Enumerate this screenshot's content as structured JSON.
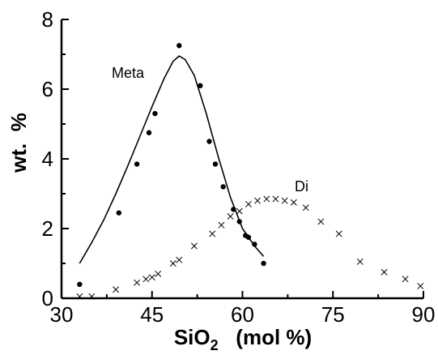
{
  "chart_data": {
    "type": "scatter",
    "title": "",
    "xlabel": {
      "main": "SiO",
      "subscript": "2",
      "unit": "(mol %)"
    },
    "ylabel": "wt.  %",
    "xlim": [
      30,
      90
    ],
    "ylim": [
      0,
      8
    ],
    "x_ticks": [
      30,
      45,
      60,
      75,
      90
    ],
    "y_ticks": [
      0,
      2,
      4,
      6,
      8
    ],
    "grid": false,
    "legend": "none",
    "series": [
      {
        "name": "Meta",
        "marker": "dot",
        "color": "#000000",
        "points": [
          [
            33.0,
            0.4
          ],
          [
            39.5,
            2.45
          ],
          [
            42.5,
            3.85
          ],
          [
            44.5,
            4.75
          ],
          [
            45.5,
            5.3
          ],
          [
            49.5,
            7.25
          ],
          [
            53.0,
            6.1
          ],
          [
            54.5,
            4.5
          ],
          [
            55.5,
            3.85
          ],
          [
            56.8,
            3.2
          ],
          [
            58.5,
            2.55
          ],
          [
            59.5,
            2.2
          ],
          [
            60.5,
            1.8
          ],
          [
            61.0,
            1.75
          ],
          [
            62.0,
            1.55
          ],
          [
            63.5,
            1.0
          ]
        ],
        "fit": [
          [
            33.0,
            1.0
          ],
          [
            35.0,
            1.6
          ],
          [
            37.0,
            2.25
          ],
          [
            39.0,
            3.0
          ],
          [
            41.0,
            3.8
          ],
          [
            43.0,
            4.65
          ],
          [
            45.0,
            5.5
          ],
          [
            47.0,
            6.3
          ],
          [
            48.5,
            6.8
          ],
          [
            49.5,
            6.95
          ],
          [
            50.5,
            6.85
          ],
          [
            52.0,
            6.4
          ],
          [
            54.0,
            5.3
          ],
          [
            56.0,
            4.05
          ],
          [
            58.0,
            2.9
          ],
          [
            60.0,
            2.0
          ],
          [
            62.0,
            1.5
          ],
          [
            63.5,
            1.2
          ]
        ]
      },
      {
        "name": "Di",
        "marker": "cross",
        "color": "#000000",
        "points": [
          [
            33.0,
            0.05
          ],
          [
            35.0,
            0.05
          ],
          [
            39.0,
            0.25
          ],
          [
            42.5,
            0.45
          ],
          [
            44.0,
            0.55
          ],
          [
            45.0,
            0.6
          ],
          [
            46.0,
            0.7
          ],
          [
            48.5,
            1.0
          ],
          [
            49.5,
            1.1
          ],
          [
            52.0,
            1.5
          ],
          [
            55.0,
            1.85
          ],
          [
            56.5,
            2.1
          ],
          [
            58.0,
            2.35
          ],
          [
            59.5,
            2.5
          ],
          [
            61.0,
            2.7
          ],
          [
            62.5,
            2.8
          ],
          [
            64.0,
            2.85
          ],
          [
            65.5,
            2.85
          ],
          [
            67.0,
            2.8
          ],
          [
            68.5,
            2.75
          ],
          [
            70.5,
            2.6
          ],
          [
            73.0,
            2.2
          ],
          [
            76.0,
            1.85
          ],
          [
            79.5,
            1.05
          ],
          [
            83.5,
            0.75
          ],
          [
            87.0,
            0.55
          ],
          [
            89.5,
            0.35
          ]
        ]
      }
    ],
    "annotations": [
      {
        "text": "Meta"
      },
      {
        "text": "Di"
      }
    ]
  }
}
